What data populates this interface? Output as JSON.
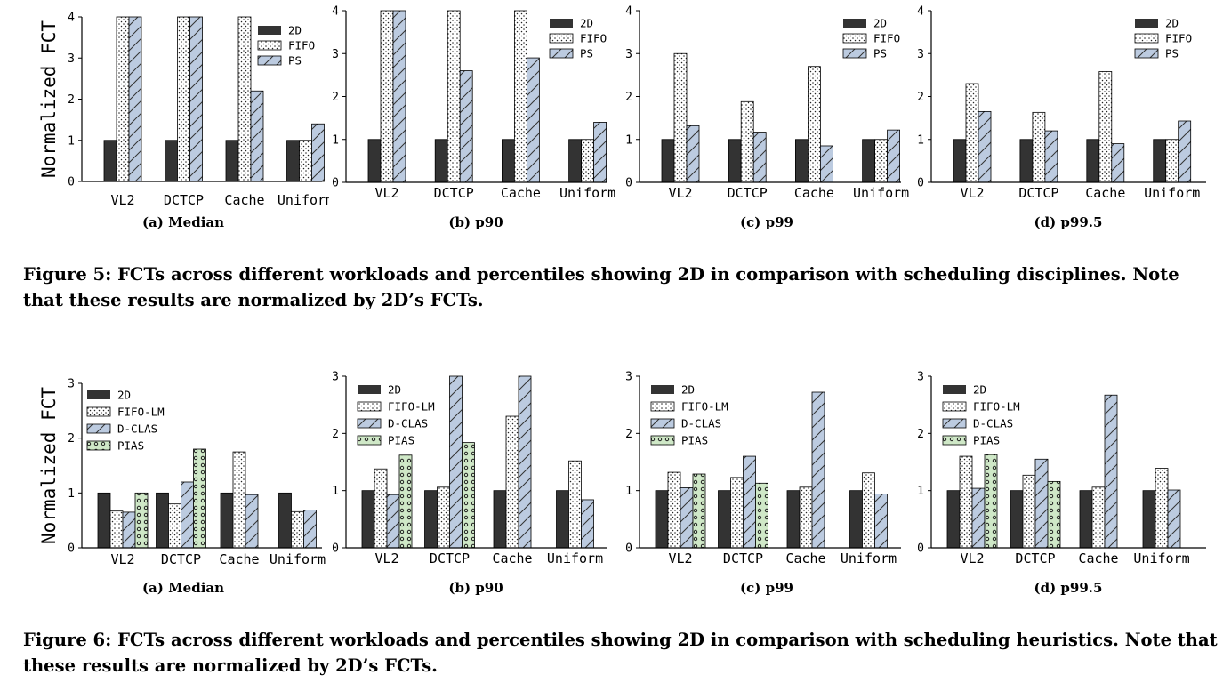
{
  "figure5": {
    "caption": "Figure 5: FCTs across different workloads and percentiles showing 2D in comparison with scheduling disciplines. Note that these results are normalized by 2D’s FCTs.",
    "ylabel": "Normalized FCT",
    "legend": [
      "2D",
      "FIFO",
      "PS"
    ],
    "subcaptions": [
      "(a) Median",
      "(b) p90",
      "(c) p99",
      "(d) p99.5"
    ]
  },
  "figure6": {
    "caption": "Figure 6: FCTs across different workloads and percentiles showing 2D in comparison with scheduling heuristics. Note that these results are normalized by 2D’s FCTs.",
    "ylabel": "Normalized FCT",
    "legend": [
      "2D",
      "FIFO-LM",
      "D-CLAS",
      "PIAS"
    ],
    "subcaptions": [
      "(a) Median",
      "(b) p90",
      "(c) p99",
      "(d) p99.5"
    ]
  },
  "styles": {
    "2D": {
      "fill": "#333333",
      "pattern": "solid"
    },
    "FIFO": {
      "fill": "#ffffff",
      "pattern": "dots"
    },
    "FIFO-LM": {
      "fill": "#ffffff",
      "pattern": "dots"
    },
    "PS": {
      "fill": "#bccbe0",
      "pattern": "hatch"
    },
    "D-CLAS": {
      "fill": "#bccbe0",
      "pattern": "hatch"
    },
    "PIAS": {
      "fill": "#cfe8c7",
      "pattern": "circles"
    }
  },
  "chart_data": [
    {
      "type": "bar",
      "figure": 5,
      "title": "(a) Median",
      "ylabel": "Normalized FCT",
      "xlabel": "",
      "categories": [
        "VL2",
        "DCTCP",
        "Cache",
        "Uniform"
      ],
      "ylim": [
        0,
        4
      ],
      "yticks": [
        0,
        1,
        2,
        3,
        4
      ],
      "series": [
        {
          "name": "2D",
          "values": [
            1,
            1,
            1,
            1
          ]
        },
        {
          "name": "FIFO",
          "values": [
            4,
            4,
            4,
            1
          ]
        },
        {
          "name": "PS",
          "values": [
            4,
            4,
            2.2,
            1.4
          ]
        }
      ]
    },
    {
      "type": "bar",
      "figure": 5,
      "title": "(b) p90",
      "xlabel": "",
      "categories": [
        "VL2",
        "DCTCP",
        "Cache",
        "Uniform"
      ],
      "ylim": [
        0,
        4
      ],
      "yticks": [
        0,
        1,
        2,
        3,
        4
      ],
      "series": [
        {
          "name": "2D",
          "values": [
            1,
            1,
            1,
            1
          ]
        },
        {
          "name": "FIFO",
          "values": [
            4,
            4,
            4,
            1
          ]
        },
        {
          "name": "PS",
          "values": [
            4,
            2.6,
            2.9,
            1.4
          ]
        }
      ]
    },
    {
      "type": "bar",
      "figure": 5,
      "title": "(c) p99",
      "xlabel": "",
      "categories": [
        "VL2",
        "DCTCP",
        "Cache",
        "Uniform"
      ],
      "ylim": [
        0,
        4
      ],
      "yticks": [
        0,
        1,
        2,
        3,
        4
      ],
      "series": [
        {
          "name": "2D",
          "values": [
            1,
            1,
            1,
            1
          ]
        },
        {
          "name": "FIFO",
          "values": [
            3.0,
            1.88,
            2.7,
            1.0
          ]
        },
        {
          "name": "PS",
          "values": [
            1.32,
            1.17,
            0.85,
            1.22
          ]
        }
      ]
    },
    {
      "type": "bar",
      "figure": 5,
      "title": "(d) p99.5",
      "xlabel": "",
      "categories": [
        "VL2",
        "DCTCP",
        "Cache",
        "Uniform"
      ],
      "ylim": [
        0,
        4
      ],
      "yticks": [
        0,
        1,
        2,
        3,
        4
      ],
      "series": [
        {
          "name": "2D",
          "values": [
            1,
            1,
            1,
            1
          ]
        },
        {
          "name": "FIFO",
          "values": [
            2.3,
            1.63,
            2.58,
            1.0
          ]
        },
        {
          "name": "PS",
          "values": [
            1.65,
            1.2,
            0.9,
            1.43
          ]
        }
      ]
    },
    {
      "type": "bar",
      "figure": 6,
      "title": "(a) Median",
      "ylabel": "Normalized FCT",
      "xlabel": "",
      "categories": [
        "VL2",
        "DCTCP",
        "Cache",
        "Uniform"
      ],
      "ylim": [
        0,
        3
      ],
      "yticks": [
        0,
        1,
        2,
        3
      ],
      "series": [
        {
          "name": "2D",
          "values": [
            1,
            1,
            1,
            1
          ]
        },
        {
          "name": "FIFO-LM",
          "values": [
            0.67,
            0.8,
            1.75,
            0.66
          ]
        },
        {
          "name": "D-CLAS",
          "values": [
            0.65,
            1.2,
            0.97,
            0.69
          ]
        },
        {
          "name": "PIAS",
          "values": [
            1.0,
            1.8,
            null,
            null
          ]
        }
      ]
    },
    {
      "type": "bar",
      "figure": 6,
      "title": "(b) p90",
      "xlabel": "",
      "categories": [
        "VL2",
        "DCTCP",
        "Cache",
        "Uniform"
      ],
      "ylim": [
        0,
        3
      ],
      "yticks": [
        0,
        1,
        2,
        3
      ],
      "series": [
        {
          "name": "2D",
          "values": [
            1,
            1,
            1,
            1
          ]
        },
        {
          "name": "FIFO-LM",
          "values": [
            1.38,
            1.06,
            2.3,
            1.52
          ]
        },
        {
          "name": "D-CLAS",
          "values": [
            0.93,
            3.0,
            3.0,
            0.84
          ]
        },
        {
          "name": "PIAS",
          "values": [
            1.62,
            1.84,
            null,
            null
          ]
        }
      ]
    },
    {
      "type": "bar",
      "figure": 6,
      "title": "(c) p99",
      "xlabel": "",
      "categories": [
        "VL2",
        "DCTCP",
        "Cache",
        "Uniform"
      ],
      "ylim": [
        0,
        3
      ],
      "yticks": [
        0,
        1,
        2,
        3
      ],
      "series": [
        {
          "name": "2D",
          "values": [
            1,
            1,
            1,
            1
          ]
        },
        {
          "name": "FIFO-LM",
          "values": [
            1.32,
            1.23,
            1.06,
            1.31
          ]
        },
        {
          "name": "D-CLAS",
          "values": [
            1.05,
            1.6,
            2.72,
            0.94
          ]
        },
        {
          "name": "PIAS",
          "values": [
            1.29,
            1.13,
            null,
            null
          ]
        }
      ]
    },
    {
      "type": "bar",
      "figure": 6,
      "title": "(d) p99.5",
      "xlabel": "",
      "categories": [
        "VL2",
        "DCTCP",
        "Cache",
        "Uniform"
      ],
      "ylim": [
        0,
        3
      ],
      "yticks": [
        0,
        1,
        2,
        3
      ],
      "series": [
        {
          "name": "2D",
          "values": [
            1,
            1,
            1,
            1
          ]
        },
        {
          "name": "FIFO-LM",
          "values": [
            1.6,
            1.27,
            1.06,
            1.39
          ]
        },
        {
          "name": "D-CLAS",
          "values": [
            1.04,
            1.55,
            2.67,
            1.01
          ]
        },
        {
          "name": "PIAS",
          "values": [
            1.63,
            1.16,
            null,
            null
          ]
        }
      ]
    }
  ]
}
